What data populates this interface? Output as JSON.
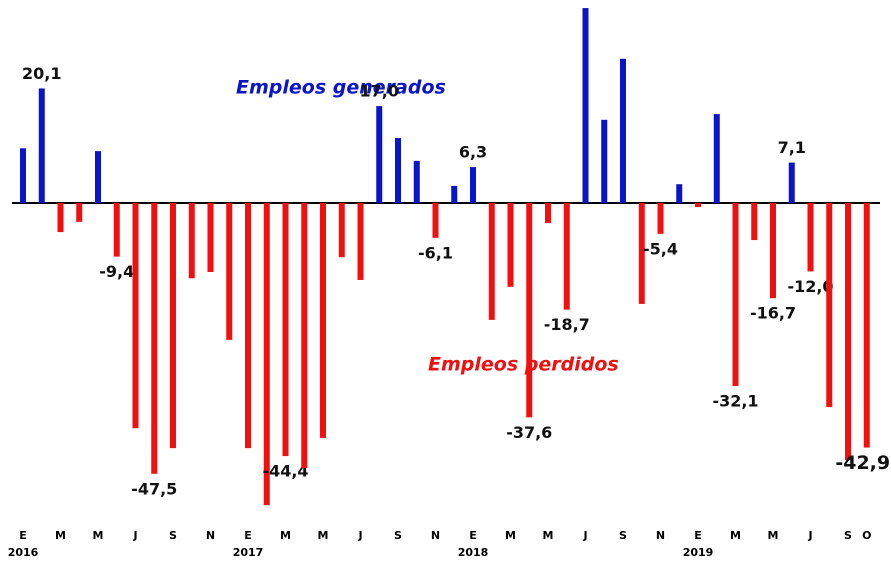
{
  "chart_data": {
    "type": "bar",
    "categories": [
      "E",
      null,
      "M",
      null,
      "M",
      null,
      "J",
      null,
      "S",
      null,
      "N",
      null,
      "E",
      null,
      "M",
      null,
      "M",
      null,
      "J",
      null,
      "S",
      null,
      "N",
      null,
      "E",
      null,
      "M",
      null,
      "M",
      null,
      "J",
      null,
      "S",
      null,
      "N",
      null,
      "E",
      null,
      "M",
      null,
      "M",
      null,
      "J",
      null,
      "S",
      "O"
    ],
    "year_labels": [
      "2016",
      "2017",
      "2018",
      "2019"
    ],
    "values": [
      9.6,
      20.1,
      -5.1,
      -3.3,
      9.1,
      -9.4,
      -39.5,
      -47.5,
      -43.0,
      -13.2,
      -12.1,
      -24.0,
      -43.0,
      -53.0,
      -44.4,
      -46.5,
      -41.2,
      -9.5,
      -13.5,
      17.0,
      11.4,
      7.4,
      -6.1,
      3.0,
      6.3,
      -20.5,
      -14.7,
      -37.6,
      -3.5,
      -18.7,
      34.2,
      14.6,
      25.3,
      -17.7,
      -5.4,
      3.3,
      -0.7,
      15.6,
      -32.1,
      -6.5,
      -16.7,
      7.1,
      -12.0,
      -35.8,
      -45.1,
      -42.9
    ],
    "value_labels": [
      null,
      "20,1",
      null,
      null,
      null,
      "-9,4",
      null,
      "-47,5",
      null,
      null,
      null,
      null,
      null,
      null,
      "-44,4",
      null,
      null,
      null,
      null,
      "17,0",
      null,
      null,
      "-6,1",
      null,
      "6,3",
      null,
      null,
      "-37,6",
      null,
      "-18,7",
      null,
      null,
      null,
      null,
      "-5,4",
      null,
      null,
      null,
      "-32,1",
      null,
      "-16,7",
      "7,1",
      "-12,0",
      null,
      null,
      "-42,9"
    ],
    "positive_color": "#0a14c8",
    "negative_color": "#f01010",
    "ylim": [
      -53.5,
      35
    ],
    "annotations": [
      {
        "text": "Empleos generados",
        "color": "#0a14c8"
      },
      {
        "text": "Empleos perdidos",
        "color": "#f01010"
      }
    ]
  }
}
